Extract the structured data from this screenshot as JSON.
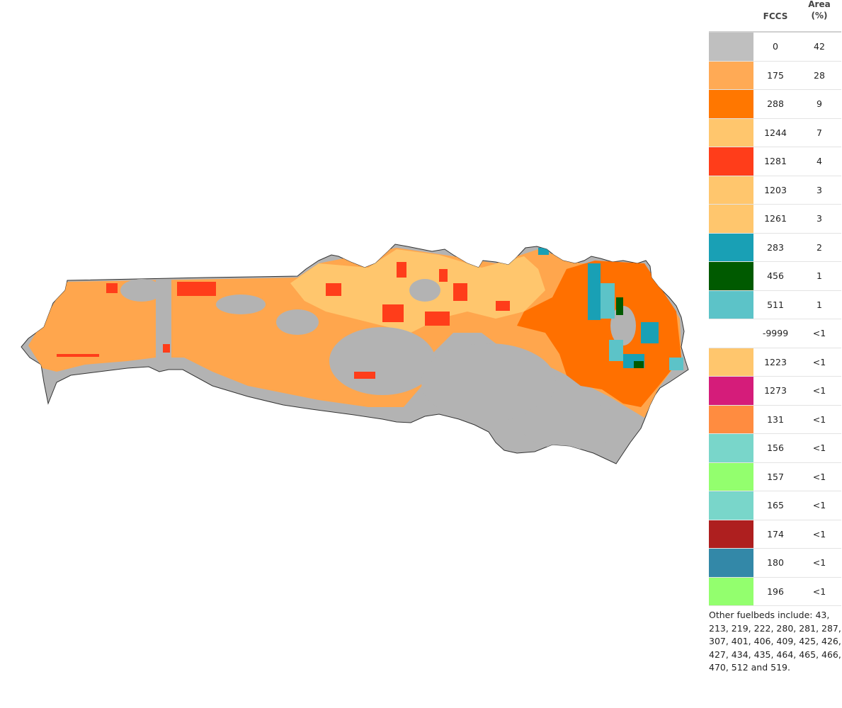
{
  "legend": {
    "header_code": "FCCS",
    "header_area_line1": "Area",
    "header_area_line2": "(%)",
    "rows": [
      {
        "code": "0",
        "area": "42",
        "color": "#bfbfbf"
      },
      {
        "code": "175",
        "area": "28",
        "color": "#ffaa55"
      },
      {
        "code": "288",
        "area": "9",
        "color": "#ff7700"
      },
      {
        "code": "1244",
        "area": "7",
        "color": "#ffc66d"
      },
      {
        "code": "1281",
        "area": "4",
        "color": "#ff3d1a"
      },
      {
        "code": "1203",
        "area": "3",
        "color": "#ffc66d"
      },
      {
        "code": "1261",
        "area": "3",
        "color": "#ffc66d"
      },
      {
        "code": "283",
        "area": "2",
        "color": "#19a0b5"
      },
      {
        "code": "456",
        "area": "1",
        "color": "#005a00"
      },
      {
        "code": "511",
        "area": "1",
        "color": "#5cc3c8"
      },
      {
        "code": "-9999",
        "area": "<1",
        "color": "#ffffff"
      },
      {
        "code": "1223",
        "area": "<1",
        "color": "#ffc66d"
      },
      {
        "code": "1273",
        "area": "<1",
        "color": "#d51c7a"
      },
      {
        "code": "131",
        "area": "<1",
        "color": "#ff8c40"
      },
      {
        "code": "156",
        "area": "<1",
        "color": "#79d6ca"
      },
      {
        "code": "157",
        "area": "<1",
        "color": "#93ff6e"
      },
      {
        "code": "165",
        "area": "<1",
        "color": "#79d6ca"
      },
      {
        "code": "174",
        "area": "<1",
        "color": "#ae1f1f"
      },
      {
        "code": "180",
        "area": "<1",
        "color": "#3388a8"
      },
      {
        "code": "196",
        "area": "<1",
        "color": "#93ff6e"
      }
    ],
    "note": "Other fuelbeds include: 43, 213, 219, 222, 280, 281, 287, 307, 401, 406, 409, 425, 426, 427, 434, 435, 464, 465, 466, 470, 512 and 519."
  }
}
